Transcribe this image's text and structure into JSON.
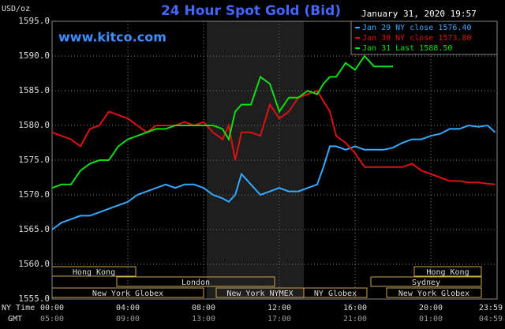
{
  "chart_data": {
    "type": "line",
    "title": "24 Hour Spot Gold (Bid)",
    "y_label": "USD/oz",
    "watermark": "www.kitco.com",
    "timestamp": "January 31, 2020 19:57",
    "x_label": "NY Time",
    "x2_label": "GMT",
    "xlim": [
      0,
      23.5
    ],
    "xticks": [
      {
        "value": 0,
        "label": "00:00"
      },
      {
        "value": 4,
        "label": "04:00"
      },
      {
        "value": 8,
        "label": "08:00"
      },
      {
        "value": 12,
        "label": "12:00"
      },
      {
        "value": 16,
        "label": "16:00"
      },
      {
        "value": 20,
        "label": "20:00"
      },
      {
        "value": 23.98,
        "label": "23:59"
      }
    ],
    "x2ticks": [
      "05:00",
      "09:00",
      "13:00",
      "17:00",
      "21:00",
      "01:00",
      "04:59"
    ],
    "ylim": [
      1555,
      1595
    ],
    "yticks": [
      {
        "value": 1555,
        "label": "1555.0"
      },
      {
        "value": 1560,
        "label": "1560.0"
      },
      {
        "value": 1565,
        "label": "1565.0"
      },
      {
        "value": 1570,
        "label": "1570.0"
      },
      {
        "value": 1575,
        "label": "1575.0"
      },
      {
        "value": 1580,
        "label": "1580.0"
      },
      {
        "value": 1585,
        "label": "1585.0"
      },
      {
        "value": 1590,
        "label": "1590.0"
      },
      {
        "value": 1595,
        "label": "1595.0"
      }
    ],
    "grid": true,
    "legend": "top-right",
    "sessions": [
      "Hong Kong",
      "London",
      "New York Globex",
      "New York NYMEX",
      "NY Globex",
      "Hong Kong",
      "Sydney",
      "New York Globex"
    ],
    "series": [
      {
        "name": "Jan 29 NY close 1576.40",
        "color": "#33aaff",
        "x": [
          0,
          0.5,
          1,
          1.5,
          2,
          2.5,
          3,
          3.5,
          4,
          4.5,
          5,
          5.5,
          6,
          6.5,
          7,
          7.5,
          8,
          8.5,
          9,
          9.33,
          9.67,
          10,
          10.5,
          11,
          11.5,
          12,
          12.5,
          13,
          13.5,
          14,
          14.33,
          14.67,
          15,
          15.5,
          16,
          16.5,
          17,
          17.5,
          18,
          18.5,
          19,
          19.5,
          20,
          20.5,
          21,
          21.5,
          22,
          22.5,
          23,
          23.4
        ],
        "values": [
          1565,
          1566,
          1566.5,
          1567,
          1567,
          1567.5,
          1568,
          1568.5,
          1569,
          1570,
          1570.5,
          1571,
          1571.5,
          1571,
          1571.5,
          1571.5,
          1571,
          1570,
          1569.5,
          1569,
          1570,
          1573,
          1571.5,
          1570,
          1570.5,
          1571,
          1570.5,
          1570.5,
          1571,
          1571.5,
          1574,
          1577,
          1577,
          1576.5,
          1577,
          1576.5,
          1576.5,
          1576.5,
          1576.8,
          1577.5,
          1578,
          1578,
          1578.5,
          1578.8,
          1579.5,
          1579.5,
          1580,
          1579.8,
          1580,
          1579
        ]
      },
      {
        "name": "Jan 30 NY close 1573.80",
        "color": "#dd1111",
        "x": [
          0,
          0.5,
          1,
          1.5,
          2,
          2.5,
          3,
          3.5,
          4,
          4.5,
          5,
          5.5,
          6,
          6.5,
          7,
          7.5,
          8,
          8.5,
          9,
          9.33,
          9.67,
          10,
          10.5,
          11,
          11.5,
          12,
          12.5,
          13,
          13.5,
          14,
          14.33,
          14.67,
          15,
          15.5,
          16,
          16.5,
          17,
          17.5,
          18,
          18.5,
          19,
          19.5,
          20,
          20.5,
          21,
          21.5,
          22,
          22.5,
          23,
          23.4
        ],
        "values": [
          1579,
          1578.5,
          1578,
          1577,
          1579.5,
          1580,
          1582,
          1581.5,
          1581,
          1580,
          1579,
          1580,
          1580,
          1580,
          1580.5,
          1580,
          1580.5,
          1579,
          1578,
          1580,
          1575,
          1579,
          1579,
          1578.5,
          1583,
          1581,
          1582,
          1584,
          1584.5,
          1585,
          1583.5,
          1582,
          1578.5,
          1577.5,
          1576,
          1574,
          1574,
          1574,
          1574,
          1574,
          1574.5,
          1573.5,
          1573,
          1572.5,
          1572,
          1572,
          1571.8,
          1571.8,
          1571.6,
          1571.5
        ]
      },
      {
        "name": "Jan 31 Last 1588.50",
        "color": "#11dd11",
        "x": [
          0,
          0.5,
          1,
          1.5,
          2,
          2.5,
          3,
          3.5,
          4,
          4.5,
          5,
          5.5,
          6,
          6.5,
          7,
          7.5,
          8,
          8.5,
          9,
          9.33,
          9.67,
          10,
          10.5,
          11,
          11.5,
          12,
          12.5,
          13,
          13.5,
          14,
          14.33,
          14.67,
          15,
          15.5,
          16,
          16.5,
          17,
          17.5,
          18
        ],
        "values": [
          1571,
          1571.5,
          1571.5,
          1573.5,
          1574.5,
          1575,
          1575,
          1577,
          1578,
          1578.5,
          1579,
          1579.5,
          1579.5,
          1580,
          1580,
          1580,
          1580,
          1580,
          1579.5,
          1578,
          1582,
          1583,
          1583,
          1587,
          1586,
          1582,
          1584,
          1584,
          1585,
          1584.5,
          1586,
          1587,
          1587,
          1589,
          1588,
          1590,
          1588.5,
          1588.5,
          1588.5
        ]
      }
    ]
  }
}
